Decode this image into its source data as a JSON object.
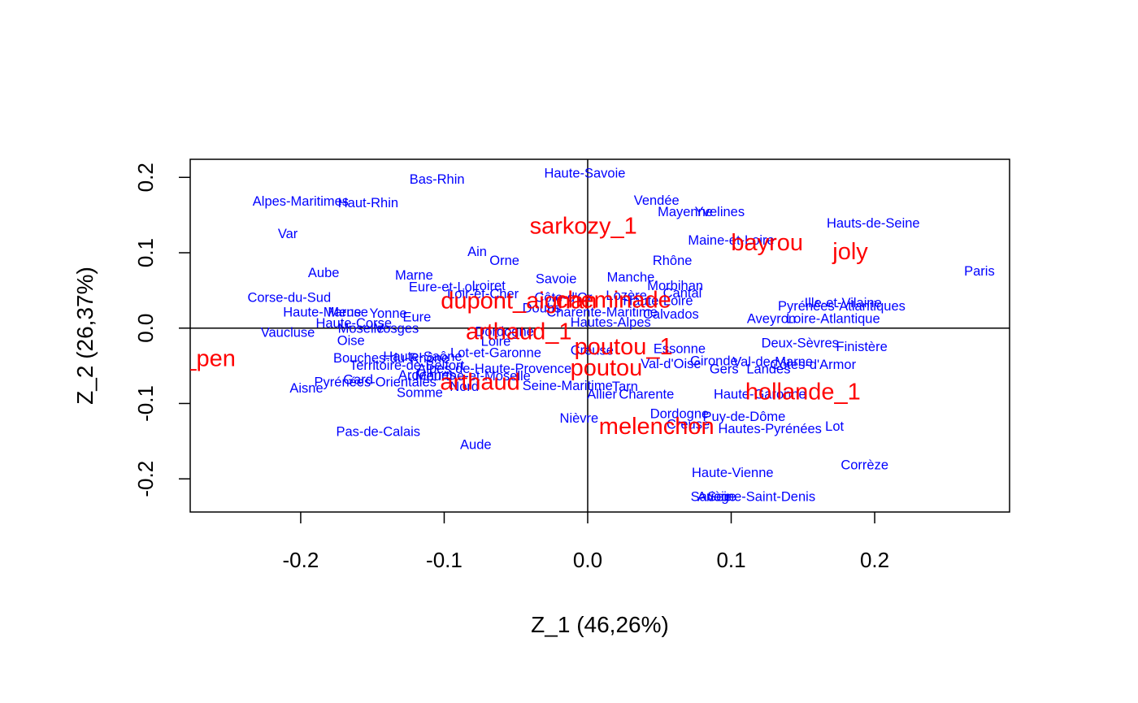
{
  "chart_data": {
    "type": "scatter",
    "title": "",
    "xlabel": "Z_1 (46,26%)",
    "ylabel": "Z_2 (26,37%)",
    "xlim": [
      -0.277,
      0.294
    ],
    "ylim": [
      -0.244,
      0.224
    ],
    "xticks": [
      -0.2,
      -0.1,
      0.0,
      0.1,
      0.2
    ],
    "xtick_labels": [
      "-0.2",
      "-0.1",
      "0.0",
      "0.1",
      "0.2"
    ],
    "yticks": [
      -0.2,
      -0.1,
      0.0,
      0.1,
      0.2
    ],
    "ytick_labels": [
      "-0.2",
      "-0.1",
      "0.0",
      "0.1",
      "0.2"
    ],
    "reference_lines": {
      "x": 0,
      "y": 0
    },
    "grid": false,
    "series": [
      {
        "color": "#0000ff",
        "points": [
          {
            "label": "Bas-Rhin",
            "x": -0.105,
            "y": 0.197
          },
          {
            "label": "Haute-Savoie",
            "x": -0.002,
            "y": 0.205
          },
          {
            "label": "Alpes-Maritimes",
            "x": -0.2,
            "y": 0.168
          },
          {
            "label": "Haut-Rhin",
            "x": -0.153,
            "y": 0.166
          },
          {
            "label": "Vendée",
            "x": 0.048,
            "y": 0.169
          },
          {
            "label": "Mayenne",
            "x": 0.068,
            "y": 0.154
          },
          {
            "label": "Yvelines",
            "x": 0.092,
            "y": 0.154
          },
          {
            "label": "Hauts-de-Seine",
            "x": 0.199,
            "y": 0.139
          },
          {
            "label": "Var",
            "x": -0.209,
            "y": 0.125
          },
          {
            "label": "Maine-et-Loire",
            "x": 0.1,
            "y": 0.116
          },
          {
            "label": "Ain",
            "x": -0.077,
            "y": 0.101
          },
          {
            "label": "Orne",
            "x": -0.058,
            "y": 0.089
          },
          {
            "label": "Rhône",
            "x": 0.059,
            "y": 0.089
          },
          {
            "label": "Paris",
            "x": 0.273,
            "y": 0.075
          },
          {
            "label": "Aube",
            "x": -0.184,
            "y": 0.073
          },
          {
            "label": "Marne",
            "x": -0.121,
            "y": 0.07
          },
          {
            "label": "Savoie",
            "x": -0.022,
            "y": 0.065
          },
          {
            "label": "Manche",
            "x": 0.03,
            "y": 0.067
          },
          {
            "label": "Eure-et-Loir",
            "x": -0.1,
            "y": 0.054
          },
          {
            "label": "Loiret",
            "x": -0.069,
            "y": 0.056
          },
          {
            "label": "Morbihan",
            "x": 0.061,
            "y": 0.056
          },
          {
            "label": "Loir-et-Cher",
            "x": -0.073,
            "y": 0.045
          },
          {
            "label": "Cantal",
            "x": 0.066,
            "y": 0.046
          },
          {
            "label": "Lozère",
            "x": 0.027,
            "y": 0.043
          },
          {
            "label": "Côte-d'Or",
            "x": -0.017,
            "y": 0.04
          },
          {
            "label": "Corse-du-Sud",
            "x": -0.208,
            "y": 0.04
          },
          {
            "label": "Haute-Loire",
            "x": 0.049,
            "y": 0.036
          },
          {
            "label": "Ille-et-Vilaine",
            "x": 0.178,
            "y": 0.033
          },
          {
            "label": "Pyrénées-Atlantiques",
            "x": 0.177,
            "y": 0.029
          },
          {
            "label": "Doubs",
            "x": -0.032,
            "y": 0.026
          },
          {
            "label": "Haute-Marne",
            "x": -0.185,
            "y": 0.021
          },
          {
            "label": "Meuse",
            "x": -0.167,
            "y": 0.021
          },
          {
            "label": "Yonne",
            "x": -0.139,
            "y": 0.019
          },
          {
            "label": "Charente-Maritime",
            "x": 0.01,
            "y": 0.021
          },
          {
            "label": "Calvados",
            "x": 0.058,
            "y": 0.018
          },
          {
            "label": "Eure",
            "x": -0.119,
            "y": 0.014
          },
          {
            "label": "Aveyron",
            "x": 0.128,
            "y": 0.012
          },
          {
            "label": "Loire-Atlantique",
            "x": 0.171,
            "y": 0.012
          },
          {
            "label": "Haute-Corse",
            "x": -0.163,
            "y": 0.006
          },
          {
            "label": "Hautes-Alpes",
            "x": 0.016,
            "y": 0.007
          },
          {
            "label": "Moselle",
            "x": -0.158,
            "y": -0.001
          },
          {
            "label": "Vosges",
            "x": -0.133,
            "y": -0.001
          },
          {
            "label": "Vaucluse",
            "x": -0.209,
            "y": -0.006
          },
          {
            "label": "Dordogne",
            "x": -0.058,
            "y": -0.005
          },
          {
            "label": "Oise",
            "x": -0.165,
            "y": -0.017
          },
          {
            "label": "Loire",
            "x": -0.064,
            "y": -0.018
          },
          {
            "label": "Deux-Sèvres",
            "x": 0.148,
            "y": -0.02
          },
          {
            "label": "Finistère",
            "x": 0.191,
            "y": -0.025
          },
          {
            "label": "Essonne",
            "x": 0.064,
            "y": -0.028
          },
          {
            "label": "Creuse",
            "x": 0.003,
            "y": -0.03
          },
          {
            "label": "Lot-et-Garonne",
            "x": -0.064,
            "y": -0.033
          },
          {
            "label": "Bouches-du-Rhône",
            "x": -0.137,
            "y": -0.04
          },
          {
            "label": "Haute-Saône",
            "x": -0.115,
            "y": -0.038
          },
          {
            "label": "Gironde",
            "x": 0.088,
            "y": -0.044
          },
          {
            "label": "Val-d'Oise",
            "x": 0.058,
            "y": -0.048
          },
          {
            "label": "Val-de-Marne",
            "x": 0.129,
            "y": -0.045
          },
          {
            "label": "Côtes-d'Armor",
            "x": 0.157,
            "y": -0.049
          },
          {
            "label": "Territoire-de-Belfort",
            "x": -0.126,
            "y": -0.05
          },
          {
            "label": "Gers",
            "x": 0.095,
            "y": -0.055
          },
          {
            "label": "Landes",
            "x": 0.126,
            "y": -0.055
          },
          {
            "label": "Alpes-de-Haute-Provence",
            "x": -0.065,
            "y": -0.054
          },
          {
            "label": "Ardennes",
            "x": -0.112,
            "y": -0.063
          },
          {
            "label": "Meurthe-et-Moselle",
            "x": -0.08,
            "y": -0.064
          },
          {
            "label": "Gard",
            "x": -0.16,
            "y": -0.069
          },
          {
            "label": "Pyrénées-Orientales",
            "x": -0.148,
            "y": -0.072
          },
          {
            "label": "Nord",
            "x": -0.086,
            "y": -0.078
          },
          {
            "label": "Seine-Maritime",
            "x": -0.014,
            "y": -0.077
          },
          {
            "label": "Tarn",
            "x": 0.026,
            "y": -0.078
          },
          {
            "label": "Aisne",
            "x": -0.196,
            "y": -0.08
          },
          {
            "label": "Somme",
            "x": -0.117,
            "y": -0.086
          },
          {
            "label": "Allier",
            "x": 0.01,
            "y": -0.088
          },
          {
            "label": "Charente",
            "x": 0.041,
            "y": -0.088
          },
          {
            "label": "Haute-Garonne",
            "x": 0.12,
            "y": -0.088
          },
          {
            "label": "Dordogne",
            "x": 0.064,
            "y": -0.114
          },
          {
            "label": "Puy-de-Dôme",
            "x": 0.109,
            "y": -0.118
          },
          {
            "label": "Nièvre",
            "x": -0.006,
            "y": -0.12
          },
          {
            "label": "Creuse",
            "x": 0.07,
            "y": -0.128
          },
          {
            "label": "Lot",
            "x": 0.172,
            "y": -0.131
          },
          {
            "label": "Hautes-Pyrénées",
            "x": 0.127,
            "y": -0.134
          },
          {
            "label": "Pas-de-Calais",
            "x": -0.146,
            "y": -0.138
          },
          {
            "label": "Aude",
            "x": -0.078,
            "y": -0.155
          },
          {
            "label": "Corrèze",
            "x": 0.193,
            "y": -0.182
          },
          {
            "label": "Haute-Vienne",
            "x": 0.101,
            "y": -0.192
          },
          {
            "label": "Savoie",
            "x": 0.086,
            "y": -0.224
          },
          {
            "label": "Seine-Saint-Denis",
            "x": 0.121,
            "y": -0.224
          },
          {
            "label": "Ariège",
            "x": 0.09,
            "y": -0.224
          }
        ]
      },
      {
        "color": "#ff0000",
        "points": [
          {
            "label": "sarkozy_1",
            "x": -0.003,
            "y": 0.135
          },
          {
            "label": "bayrou",
            "x": 0.125,
            "y": 0.113
          },
          {
            "label": "joly",
            "x": 0.183,
            "y": 0.101
          },
          {
            "label": "dupont_aignan",
            "x": -0.048,
            "y": 0.036
          },
          {
            "label": "cheminade",
            "x": 0.018,
            "y": 0.037
          },
          {
            "label": "arthaud_1",
            "x": -0.048,
            "y": -0.005
          },
          {
            "label": "poutou_1",
            "x": 0.025,
            "y": -0.025
          },
          {
            "label": "le_pen",
            "x": -0.27,
            "y": -0.041
          },
          {
            "label": "poutou",
            "x": 0.013,
            "y": -0.053
          },
          {
            "label": "arthaud",
            "x": -0.075,
            "y": -0.072
          },
          {
            "label": "hollande_1",
            "x": 0.15,
            "y": -0.085
          },
          {
            "label": "melenchon",
            "x": 0.048,
            "y": -0.131
          }
        ]
      }
    ]
  }
}
